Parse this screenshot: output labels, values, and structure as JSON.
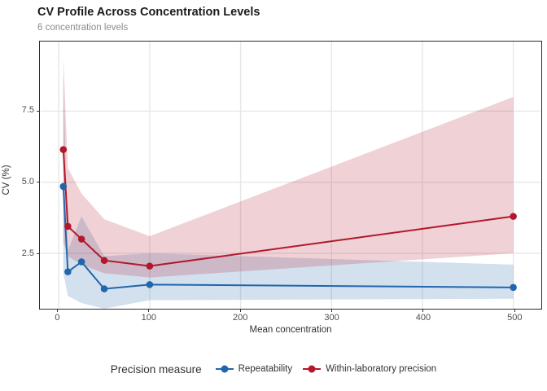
{
  "chart_data": {
    "type": "line",
    "title": "CV Profile Across Concentration Levels",
    "subtitle": "6 concentration levels",
    "xlabel": "Mean concentration",
    "ylabel": "CV (%)",
    "legend_title": "Precision measure",
    "legend_position": "bottom",
    "grid": true,
    "x": [
      5,
      10,
      25,
      50,
      100,
      500
    ],
    "series": [
      {
        "name": "Repeatability",
        "color": "#2166ac",
        "values": [
          4.85,
          1.85,
          2.2,
          1.25,
          1.4,
          1.3
        ],
        "ci_lower": [
          1.8,
          1.0,
          0.75,
          0.55,
          0.85,
          0.9
        ],
        "ci_upper": [
          8.8,
          2.6,
          3.8,
          2.4,
          2.5,
          2.1
        ]
      },
      {
        "name": "Within-laboratory precision",
        "color": "#b2182b",
        "values": [
          6.15,
          3.45,
          3.0,
          2.25,
          2.05,
          3.8
        ],
        "ci_lower": [
          2.9,
          2.4,
          2.1,
          1.8,
          1.65,
          2.5
        ],
        "ci_upper": [
          9.4,
          5.5,
          4.6,
          3.7,
          3.1,
          8.0
        ]
      }
    ],
    "x_ticks": [
      "0",
      "100",
      "200",
      "300",
      "400",
      "500"
    ],
    "y_ticks": [
      "2.5",
      "5.0",
      "7.5"
    ],
    "x_domain": [
      -20,
      530
    ],
    "y_domain": [
      0.55,
      9.95
    ],
    "ribbon_opacity": 0.2,
    "gridline_color": "#e7e7e7"
  }
}
